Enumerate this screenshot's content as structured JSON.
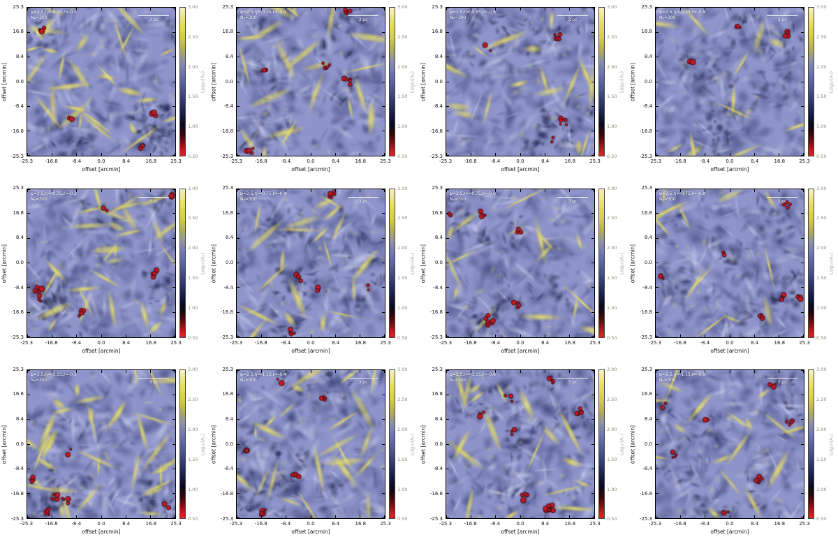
{
  "figure": {
    "axis_label_x": "offset [arcmin]",
    "axis_label_y": "offset [arcmin]",
    "x_ticks": [
      "-25.3",
      "-16.8",
      "-8.4",
      "0.0",
      "8.4",
      "16.8",
      "25.3"
    ],
    "y_ticks": [
      "25.3",
      "16.8",
      "8.4",
      "0.0",
      "-8.4",
      "-16.8",
      "-25.3"
    ],
    "colorbar_label": "Log₁₀(Aᵥ)",
    "colorbar_ticks": [
      "3.00",
      "2.50",
      "2.00",
      "1.50",
      "1.00",
      "0.50"
    ],
    "scalebar_label": "3 pc",
    "panels": [
      {
        "line1": "ψ=2.5,η=-0.35,ℓ=-0.2",
        "line2": "Nₚ=300",
        "render": {
          "seed": 1,
          "yellow": 1.15,
          "red": 4
        }
      },
      {
        "line1": "ψ=2.5,η=-0.35,ℓ=-0.4",
        "line2": "Nₚ=300",
        "render": {
          "seed": 2,
          "yellow": 0.8,
          "red": 5
        }
      },
      {
        "line1": "ψ=2.5,η=-0.35,ℓ=-0.6",
        "line2": "Nₚ=300",
        "render": {
          "seed": 3,
          "yellow": 0.6,
          "red": 4
        }
      },
      {
        "line1": "ψ=2.5,η=-0.35,ℓ=-0.8",
        "line2": "Nₚ=300",
        "render": {
          "seed": 4,
          "yellow": 0.45,
          "red": 3
        }
      },
      {
        "line1": "ψ=2.5,η=-0.75,ℓ=-0.2",
        "line2": "Nₚ=300",
        "render": {
          "seed": 5,
          "yellow": 1.1,
          "red": 6
        }
      },
      {
        "line1": "ψ=2.5,η=-0.75,ℓ=-0.4",
        "line2": "Nₚ=300",
        "render": {
          "seed": 6,
          "yellow": 0.75,
          "red": 5
        }
      },
      {
        "line1": "ψ=2.5,η=-0.75,ℓ=-0.6",
        "line2": "Nₚ=300",
        "render": {
          "seed": 7,
          "yellow": 0.6,
          "red": 6
        }
      },
      {
        "line1": "ψ=2.5,η=-0.75,ℓ=-0.8",
        "line2": "Nₚ=300",
        "render": {
          "seed": 8,
          "yellow": 0.5,
          "red": 6
        }
      },
      {
        "line1": "ψ=2.5,η=-1.15,ℓ=-0.2",
        "line2": "Nₚ=300",
        "render": {
          "seed": 9,
          "yellow": 1.35,
          "red": 6
        }
      },
      {
        "line1": "ψ=2.5,η=-1.15,ℓ=-0.4",
        "line2": "Nₚ=300",
        "render": {
          "seed": 10,
          "yellow": 0.9,
          "red": 5
        }
      },
      {
        "line1": "ψ=2.5,η=-1.15,ℓ=-0.6",
        "line2": "Nₚ=300",
        "render": {
          "seed": 11,
          "yellow": 0.7,
          "red": 8
        }
      },
      {
        "line1": "ψ=2.5,η=-1.15,ℓ=-0.8",
        "line2": "Nₚ=300",
        "render": {
          "seed": 12,
          "yellow": 0.65,
          "red": 7
        }
      }
    ]
  },
  "chart_data": {
    "type": "heatmap",
    "title": "",
    "layout": {
      "rows": 3,
      "cols": 4,
      "legend_position": "right-of-each-panel"
    },
    "x": {
      "label": "offset [arcmin]",
      "range": [
        -25.3,
        25.3
      ],
      "ticks": [
        -25.3,
        -16.8,
        -8.4,
        0.0,
        8.4,
        16.8,
        25.3
      ]
    },
    "y": {
      "label": "offset [arcmin]",
      "range": [
        -25.3,
        25.3
      ],
      "ticks": [
        25.3,
        16.8,
        8.4,
        0.0,
        -8.4,
        -16.8,
        -25.3
      ]
    },
    "colorbar": {
      "label": "Log₁₀(Aᵥ)",
      "range": [
        0.5,
        3.0
      ],
      "ticks": [
        3.0,
        2.5,
        2.0,
        1.5,
        1.0,
        0.5
      ]
    },
    "scalebar": "3 pc",
    "description": "Grid of simulated column-density (extinction) maps of turbulent cloud fields; lavender-blue diffuse background with dark navy mottling, elongated yellow high-density filaments, and small red contoured clumps.",
    "panels": [
      {
        "row": 1,
        "col": 1,
        "psi": 2.5,
        "eta": -0.35,
        "ell": -0.2,
        "N": 300
      },
      {
        "row": 1,
        "col": 2,
        "psi": 2.5,
        "eta": -0.35,
        "ell": -0.4,
        "N": 300
      },
      {
        "row": 1,
        "col": 3,
        "psi": 2.5,
        "eta": -0.35,
        "ell": -0.6,
        "N": 300
      },
      {
        "row": 1,
        "col": 4,
        "psi": 2.5,
        "eta": -0.35,
        "ell": -0.8,
        "N": 300
      },
      {
        "row": 2,
        "col": 1,
        "psi": 2.5,
        "eta": -0.75,
        "ell": -0.2,
        "N": 300
      },
      {
        "row": 2,
        "col": 2,
        "psi": 2.5,
        "eta": -0.75,
        "ell": -0.4,
        "N": 300
      },
      {
        "row": 2,
        "col": 3,
        "psi": 2.5,
        "eta": -0.75,
        "ell": -0.6,
        "N": 300
      },
      {
        "row": 2,
        "col": 4,
        "psi": 2.5,
        "eta": -0.75,
        "ell": -0.8,
        "N": 300
      },
      {
        "row": 3,
        "col": 1,
        "psi": 2.5,
        "eta": -1.15,
        "ell": -0.2,
        "N": 300
      },
      {
        "row": 3,
        "col": 2,
        "psi": 2.5,
        "eta": -1.15,
        "ell": -0.4,
        "N": 300
      },
      {
        "row": 3,
        "col": 3,
        "psi": 2.5,
        "eta": -1.15,
        "ell": -0.6,
        "N": 300
      },
      {
        "row": 3,
        "col": 4,
        "psi": 2.5,
        "eta": -1.15,
        "ell": -0.8,
        "N": 300
      }
    ]
  }
}
